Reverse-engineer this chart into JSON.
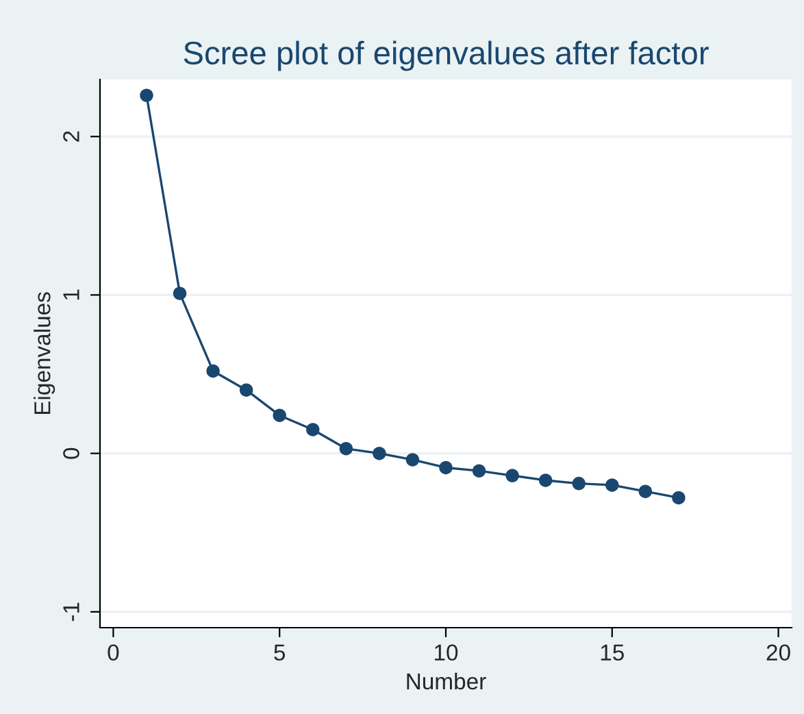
{
  "chart_data": {
    "type": "line",
    "title": "Scree plot of eigenvalues after factor",
    "xlabel": "Number",
    "ylabel": "Eigenvalues",
    "x": [
      1,
      2,
      3,
      4,
      5,
      6,
      7,
      8,
      9,
      10,
      11,
      12,
      13,
      14,
      15,
      16,
      17
    ],
    "series": [
      {
        "color": "#1a476f",
        "values": [
          2.26,
          1.01,
          0.52,
          0.4,
          0.24,
          0.15,
          0.03,
          0.0,
          -0.04,
          -0.09,
          -0.11,
          -0.14,
          -0.17,
          -0.19,
          -0.2,
          -0.24,
          -0.28
        ]
      }
    ],
    "xlim": [
      -0.4,
      20.4
    ],
    "ylim": [
      -1.1,
      2.36
    ],
    "xticks": [
      0,
      5,
      10,
      15,
      20
    ],
    "yticks": [
      -1,
      0,
      1,
      2
    ],
    "grid": "y",
    "marker": "circle",
    "line_style": "solid",
    "legend": false
  }
}
